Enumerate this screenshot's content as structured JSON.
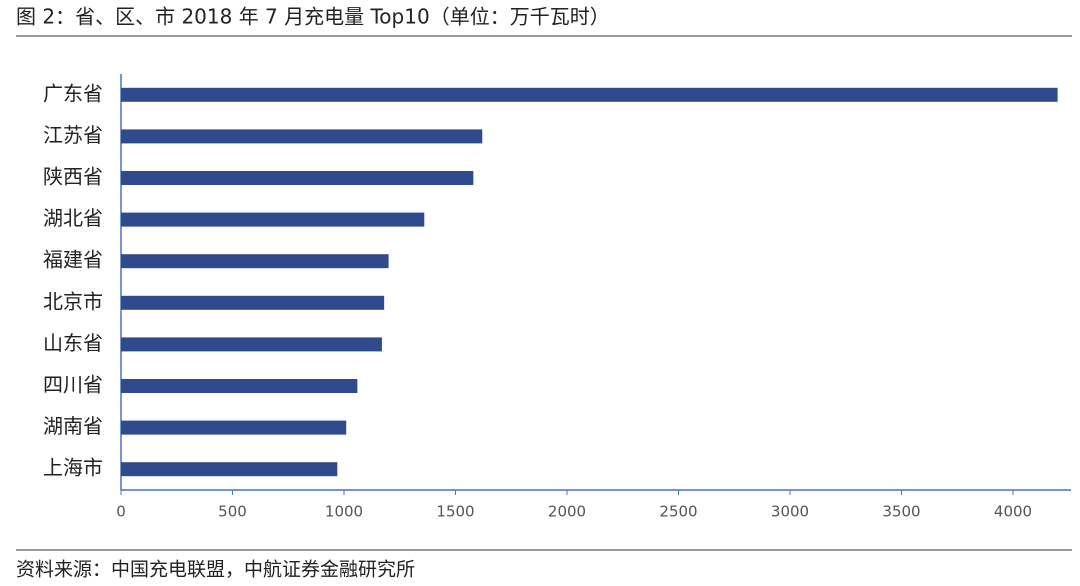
{
  "chart_data": {
    "type": "hbar",
    "title": "图 2：省、区、市 2018 年 7 月充电量 Top10（单位：万千瓦时）",
    "source": "资料来源：中国充电联盟，中航证券金融研究所",
    "categories": [
      "广东省",
      "江苏省",
      "陕西省",
      "湖北省",
      "福建省",
      "北京市",
      "山东省",
      "四川省",
      "湖南省",
      "上海市"
    ],
    "values": [
      4200,
      1620,
      1580,
      1360,
      1200,
      1180,
      1170,
      1060,
      1010,
      970
    ],
    "color": "#2f4b8e",
    "xlim": [
      0,
      4260
    ],
    "xticks": [
      0,
      500,
      1000,
      1500,
      2000,
      2500,
      3000,
      3500,
      4000
    ],
    "grid": false
  }
}
